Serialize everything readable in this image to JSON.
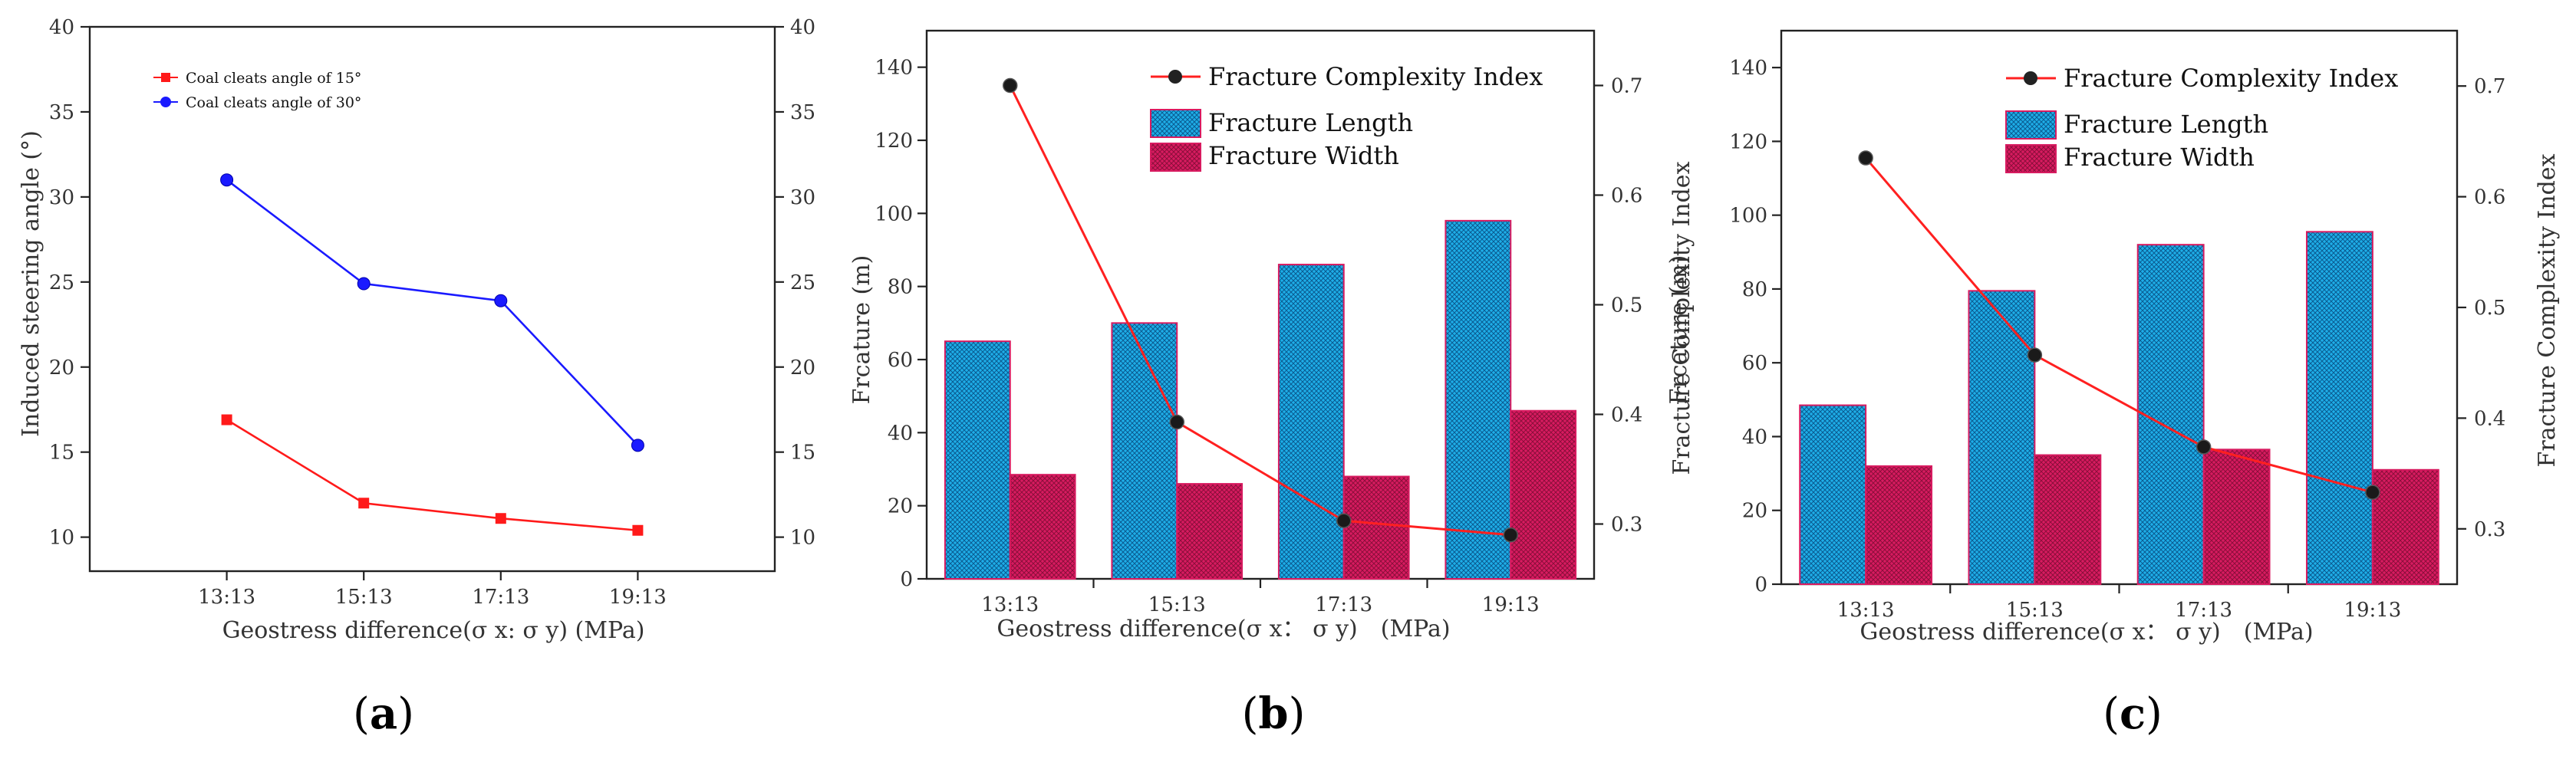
{
  "chart_data": [
    {
      "type": "line",
      "panel_label": "(a)",
      "panel_letter": "a",
      "categories": [
        "13:13",
        "15:13",
        "17:13",
        "19:13"
      ],
      "xlabel": "Geostress difference(σ x: σ y) (MPa)",
      "ylabel": "Induced steering angle (°)",
      "ylim": [
        8,
        40
      ],
      "yticks": [
        10,
        15,
        20,
        25,
        30,
        35,
        40
      ],
      "right_axis_mirror": true,
      "legend_position": "top-left",
      "series": [
        {
          "name": "Coal cleats angle of 15°",
          "values": [
            16.9,
            12.0,
            11.1,
            10.4
          ],
          "color": "#ff1a1a",
          "marker": "square"
        },
        {
          "name": "Coal cleats angle of 30°",
          "values": [
            31.0,
            24.9,
            23.9,
            15.4
          ],
          "color": "#1a1aff",
          "marker": "circle"
        }
      ]
    },
    {
      "type": "bar",
      "panel_label": "(b)",
      "panel_letter": "b",
      "categories": [
        "13:13",
        "15:13",
        "17:13",
        "19:13"
      ],
      "xlabel": "Geostress difference(σ x： σ y)　(MPa)",
      "ylabel": "Frcature (m)",
      "ylim": [
        0,
        150
      ],
      "yticks": [
        0,
        20,
        40,
        60,
        80,
        100,
        120,
        140
      ],
      "y2label": "Fracture Complexity Index",
      "y2lim": [
        0.25,
        0.75
      ],
      "y2ticks": [
        0.3,
        0.4,
        0.5,
        0.6,
        0.7
      ],
      "legend_position": "top-right",
      "series": [
        {
          "name": "Fracture Length",
          "values": [
            65,
            70,
            86,
            98
          ],
          "color": "#1eaee8"
        },
        {
          "name": "Fracture Width",
          "values": [
            28.5,
            26,
            28,
            46
          ],
          "color": "#d81b60"
        }
      ],
      "line_series": {
        "name": "Fracture Complexity Index",
        "values": [
          0.7,
          0.393,
          0.303,
          0.29
        ],
        "color": "#ff2020"
      }
    },
    {
      "type": "bar",
      "panel_label": "(c)",
      "panel_letter": "c",
      "categories": [
        "13:13",
        "15:13",
        "17:13",
        "19:13"
      ],
      "xlabel": "Geostress difference(σ x： σ y)　(MPa)",
      "ylabel": "Frcature (m)",
      "ylim": [
        0,
        150
      ],
      "yticks": [
        0,
        20,
        40,
        60,
        80,
        100,
        120,
        140
      ],
      "y2label": "Fracture Complexity Index",
      "y2lim": [
        0.25,
        0.75
      ],
      "y2ticks": [
        0.3,
        0.4,
        0.5,
        0.6,
        0.7
      ],
      "legend_position": "top-right",
      "series": [
        {
          "name": "Fracture Length",
          "values": [
            48.5,
            79.5,
            92,
            95.5
          ],
          "color": "#1eaee8"
        },
        {
          "name": "Fracture Width",
          "values": [
            32,
            35,
            36.5,
            31
          ],
          "color": "#d81b60"
        }
      ],
      "line_series": {
        "name": "Fracture Complexity Index",
        "values": [
          0.635,
          0.457,
          0.374,
          0.333
        ],
        "color": "#ff2020"
      }
    }
  ]
}
